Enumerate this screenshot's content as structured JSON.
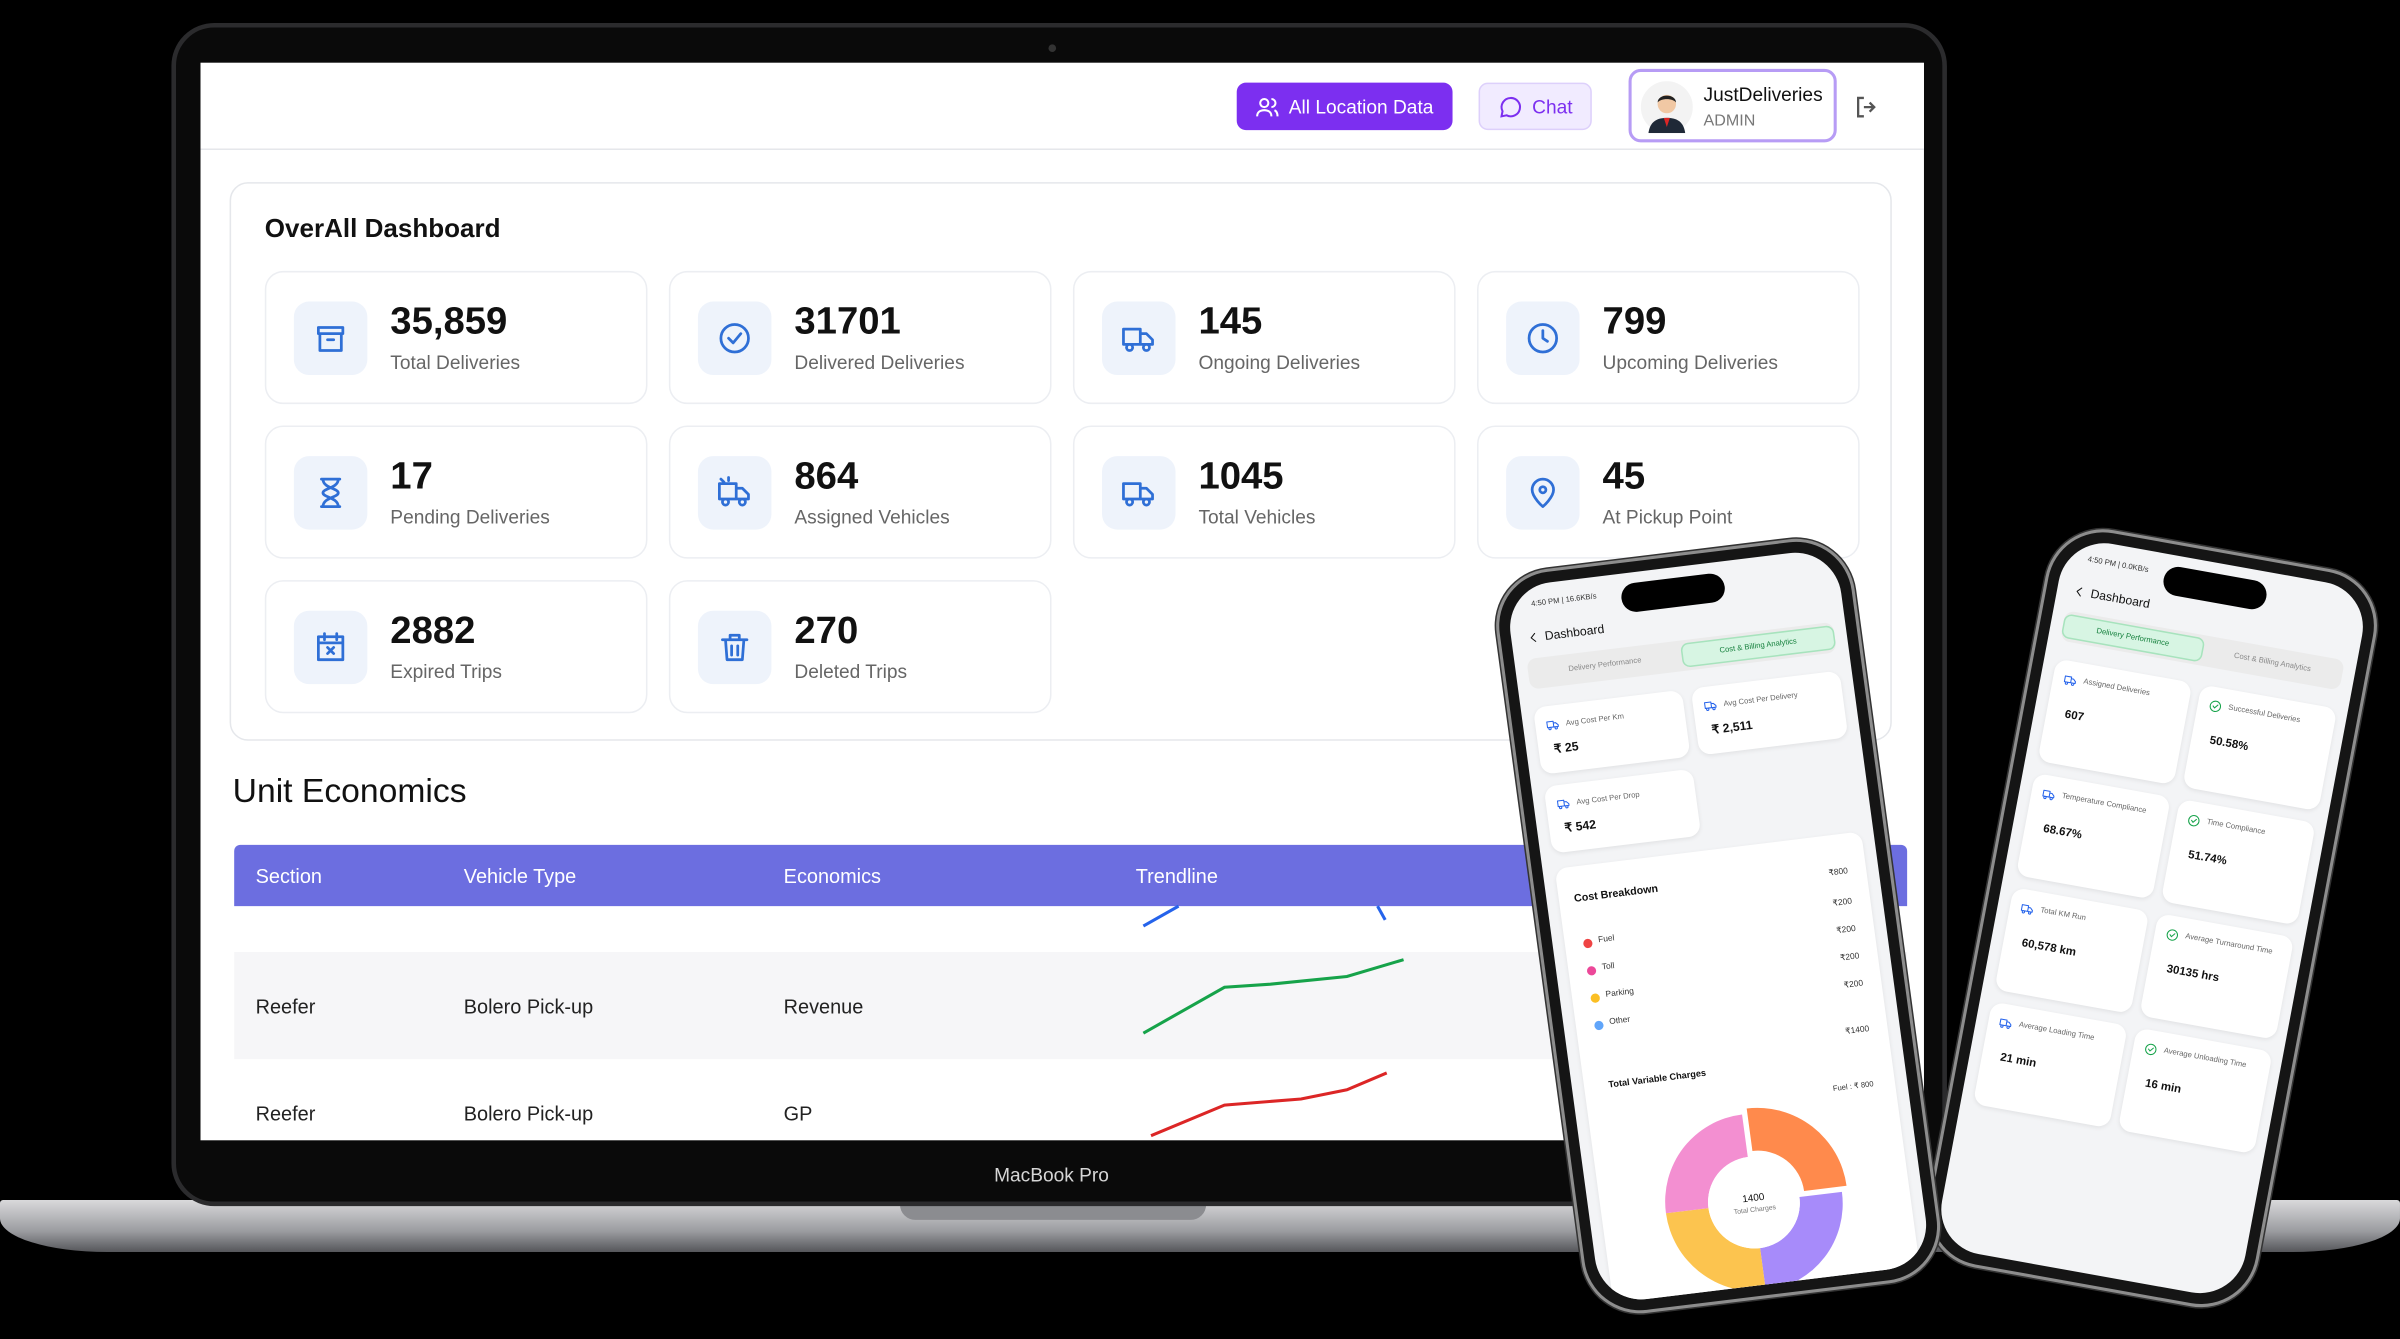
{
  "header": {
    "buttons": [
      "All Location Data",
      "Chat"
    ],
    "user": {
      "name": "JustDeliveries",
      "role": "ADMIN"
    }
  },
  "dashboard": {
    "title": "OverAll Dashboard",
    "stats": [
      {
        "value": "35,859",
        "label": "Total Deliveries"
      },
      {
        "value": "31701",
        "label": "Delivered Deliveries"
      },
      {
        "value": "145",
        "label": "Ongoing Deliveries"
      },
      {
        "value": "799",
        "label": "Upcoming Deliveries"
      },
      {
        "value": "17",
        "label": "Pending Deliveries"
      },
      {
        "value": "864",
        "label": "Assigned Vehicles"
      },
      {
        "value": "1045",
        "label": "Total Vehicles"
      },
      {
        "value": "45",
        "label": "At Pickup Point"
      },
      {
        "value": "2882",
        "label": "Expired Trips"
      },
      {
        "value": "270",
        "label": "Deleted Trips"
      }
    ]
  },
  "unit_economics": {
    "title": "Unit Economics",
    "columns": [
      "Section",
      "Vehicle Type",
      "Economics",
      "Trendline"
    ],
    "rows": [
      [
        "Reefer",
        "Bolero Pick-up",
        "Revenue"
      ],
      [
        "Reefer",
        "Bolero Pick-up",
        "GP"
      ]
    ]
  },
  "device_label": "MacBook Pro",
  "phone_cost": {
    "status": "4:50 PM | 16.6KB/s",
    "title": "Dashboard",
    "tabs": [
      "Delivery Performance",
      "Cost & Billing Analytics"
    ],
    "active_tab": 1,
    "cards": [
      {
        "label": "Avg Cost Per Km",
        "value": "₹ 25"
      },
      {
        "label": "Avg Cost Per Delivery",
        "value": "₹ 2,511"
      },
      {
        "label": "Avg Cost Per Drop",
        "value": "₹ 542"
      }
    ],
    "breakdown": {
      "title": "Cost Breakdown",
      "total": "₹800",
      "items": [
        {
          "name": "Fuel",
          "amount": "₹200",
          "color": "#ef4444"
        },
        {
          "name": "Toll",
          "amount": "₹200",
          "color": "#ec4899"
        },
        {
          "name": "Parking",
          "amount": "₹200",
          "color": "#fbbf24"
        },
        {
          "name": "Other",
          "amount": "₹200",
          "color": "#60a5fa"
        }
      ]
    },
    "variable": {
      "title": "Total Variable Charges",
      "amount": "₹1400"
    },
    "donut": {
      "center_value": "1400",
      "center_label": "Total Charges",
      "callout": "Fuel : ₹ 800",
      "segments": [
        {
          "value": 25,
          "color": "#ff8a4c"
        },
        {
          "value": 25,
          "color": "#a78bfa"
        },
        {
          "value": 25,
          "color": "#fcc44f"
        },
        {
          "value": 25,
          "color": "#f38fd1"
        }
      ]
    }
  },
  "phone_delivery": {
    "status": "4:50 PM | 0.0KB/s",
    "title": "Dashboard",
    "tabs": [
      "Delivery Performance",
      "Cost & Billing Analytics"
    ],
    "active_tab": 0,
    "cards": [
      {
        "label": "Assigned Deliveries",
        "value": "607"
      },
      {
        "label": "Successful Deliveries",
        "value": "50.58%"
      },
      {
        "label": "Temperature Compliance",
        "value": "68.67%"
      },
      {
        "label": "Time Compliance",
        "value": "51.74%"
      },
      {
        "label": "Total KM Run",
        "value": "60,578 km"
      },
      {
        "label": "Average Turnaround Time",
        "value": "30135 hrs"
      },
      {
        "label": "Average Loading Time",
        "value": "21 min"
      },
      {
        "label": "Average Unloading Time",
        "value": "16 min"
      }
    ]
  }
}
